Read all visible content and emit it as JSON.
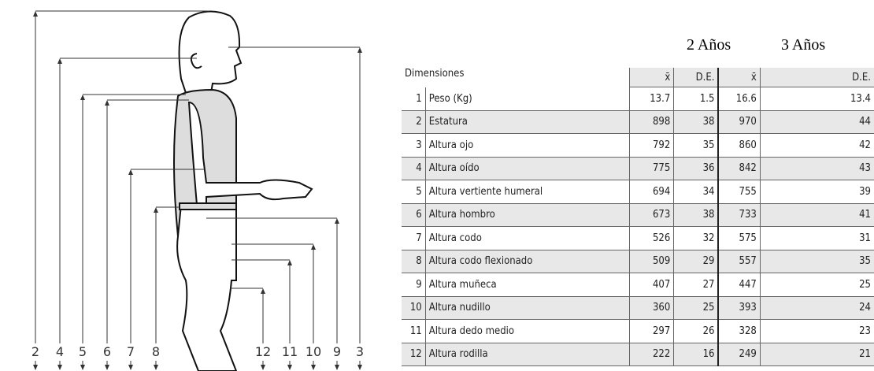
{
  "figure": {
    "labels": [
      "2",
      "4",
      "5",
      "6",
      "7",
      "8",
      "12",
      "11",
      "10",
      "9",
      "3"
    ]
  },
  "table": {
    "groups": [
      "2 Años",
      "3 Años"
    ],
    "dimension_header": "Dimensiones",
    "subheaders": [
      "x̄",
      "D.E.",
      "x̄",
      "D.E."
    ],
    "rows": [
      [
        "1",
        "Peso (Kg)",
        "13.7",
        "1.5",
        "16.6",
        "13.4"
      ],
      [
        "2",
        "Estatura",
        "898",
        "38",
        "970",
        "44"
      ],
      [
        "3",
        "Altura ojo",
        "792",
        "35",
        "860",
        "42"
      ],
      [
        "4",
        "Altura oído",
        "775",
        "36",
        "842",
        "43"
      ],
      [
        "5",
        "Altura vertiente humeral",
        "694",
        "34",
        "755",
        "39"
      ],
      [
        "6",
        "Altura hombro",
        "673",
        "38",
        "733",
        "41"
      ],
      [
        "7",
        "Altura codo",
        "526",
        "32",
        "575",
        "31"
      ],
      [
        "8",
        "Altura codo flexionado",
        "509",
        "29",
        "557",
        "35"
      ],
      [
        "9",
        "Altura muñeca",
        "407",
        "27",
        "447",
        "25"
      ],
      [
        "10",
        "Altura nudillo",
        "360",
        "25",
        "393",
        "24"
      ],
      [
        "11",
        "Altura dedo medio",
        "297",
        "26",
        "328",
        "23"
      ],
      [
        "12",
        "Altura rodilla",
        "222",
        "16",
        "249",
        "21"
      ]
    ]
  }
}
